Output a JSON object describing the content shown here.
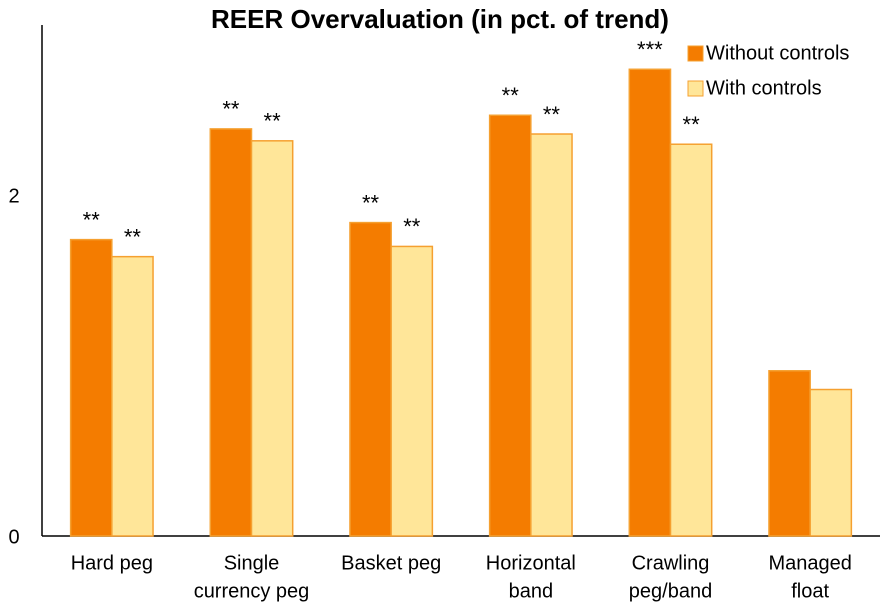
{
  "chart_data": {
    "type": "bar",
    "title": "REER Overvaluation (in pct. of trend)",
    "categories": [
      [
        "Hard peg"
      ],
      [
        "Single",
        "currency peg"
      ],
      [
        "Basket peg"
      ],
      [
        "Horizontal",
        "band"
      ],
      [
        "Crawling",
        "peg/band"
      ],
      [
        "Managed",
        "float"
      ]
    ],
    "series": [
      {
        "name": "Without controls",
        "color": "#f47c00",
        "values": [
          1.74,
          2.39,
          1.84,
          2.47,
          2.74,
          0.97
        ],
        "stars": [
          "**",
          "**",
          "**",
          "**",
          "***",
          null
        ]
      },
      {
        "name": "With controls",
        "color": "#ffe699",
        "values": [
          1.64,
          2.32,
          1.7,
          2.36,
          2.3,
          0.86
        ],
        "stars": [
          "**",
          "**",
          "**",
          "**",
          "**",
          null
        ]
      }
    ],
    "ylim": [
      0,
      3
    ],
    "yticks": [
      0,
      2
    ],
    "grid": false
  }
}
